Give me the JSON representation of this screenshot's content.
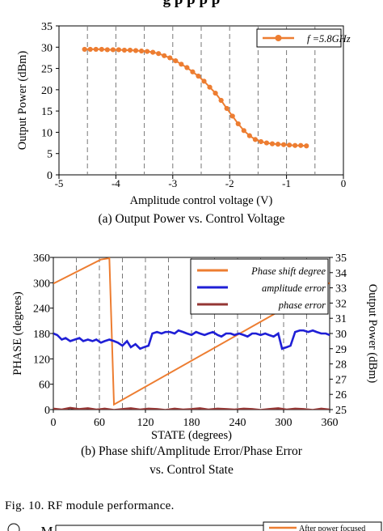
{
  "top_title_fragment": "g  p p  p p",
  "figure_caption": "Fig. 10.  RF module performance.",
  "chart_data": [
    {
      "type": "line",
      "caption": "(a) Output Power vs. Control Voltage",
      "xlabel": "Amplitude control voltage (V)",
      "ylabel": "Output Power (dBm)",
      "xlim": [
        -5,
        0
      ],
      "ylim": [
        0,
        35
      ],
      "xticks": [
        "-5",
        "-4",
        "-3",
        "-2",
        "-1",
        "0"
      ],
      "yticks": [
        "0",
        "5",
        "10",
        "15",
        "20",
        "25",
        "30",
        "35"
      ],
      "grid": "vertical dashed",
      "legend_position": "top-right",
      "series": [
        {
          "name": "f =5.8GHz",
          "color": "#ed7d31",
          "x": [
            -4.55,
            -4.45,
            -4.35,
            -4.25,
            -4.15,
            -4.05,
            -3.95,
            -3.85,
            -3.75,
            -3.65,
            -3.55,
            -3.45,
            -3.35,
            -3.25,
            -3.15,
            -3.05,
            -2.95,
            -2.85,
            -2.75,
            -2.65,
            -2.55,
            -2.45,
            -2.35,
            -2.25,
            -2.15,
            -2.05,
            -1.95,
            -1.85,
            -1.75,
            -1.65,
            -1.55,
            -1.45,
            -1.35,
            -1.25,
            -1.15,
            -1.05,
            -0.95,
            -0.85,
            -0.75,
            -0.65
          ],
          "y": [
            29.5,
            29.5,
            29.5,
            29.5,
            29.4,
            29.4,
            29.4,
            29.3,
            29.3,
            29.2,
            29.1,
            29.0,
            28.8,
            28.5,
            28.0,
            27.5,
            26.8,
            26.0,
            25.2,
            24.2,
            23.2,
            22.0,
            20.6,
            19.2,
            17.5,
            15.6,
            13.8,
            12.0,
            10.4,
            9.2,
            8.3,
            7.8,
            7.5,
            7.3,
            7.2,
            7.1,
            7.0,
            6.9,
            6.9,
            6.8
          ]
        }
      ]
    },
    {
      "type": "line",
      "caption_line1": "(b) Phase shift/Amplitude Error/Phase Error",
      "caption_line2": "vs. Control State",
      "xlabel": "STATE (degrees)",
      "ylabel": "PHASE (degrees)",
      "y2label": "Output Power (dBm)",
      "xlim": [
        0,
        360
      ],
      "ylim": [
        0,
        360
      ],
      "y2lim": [
        25,
        35
      ],
      "xticks": [
        "0",
        "60",
        "120",
        "180",
        "240",
        "300",
        "360"
      ],
      "yticks": [
        "0",
        "60",
        "120",
        "180",
        "240",
        "300",
        "360"
      ],
      "y2ticks": [
        "25",
        "26",
        "27",
        "28",
        "29",
        "30",
        "31",
        "32",
        "33",
        "34",
        "35"
      ],
      "grid": "vertical dashed",
      "legend_position": "top-right",
      "series": [
        {
          "name": "Phase shift degree",
          "color": "#ed7d31",
          "axis": "left",
          "x": [
            0,
            62,
            73,
            79,
            360
          ],
          "y": [
            298,
            355,
            358,
            12,
            300
          ]
        },
        {
          "name": "amplitude error",
          "color": "#1f1fd6",
          "axis": "right",
          "x": [
            0,
            5,
            11,
            16,
            22,
            28,
            34,
            39,
            45,
            51,
            56,
            62,
            67,
            73,
            79,
            84,
            90,
            96,
            101,
            107,
            113,
            118,
            124,
            129,
            135,
            141,
            146,
            152,
            158,
            163,
            169,
            174,
            180,
            186,
            191,
            197,
            202,
            208,
            214,
            219,
            225,
            231,
            236,
            242,
            248,
            253,
            259,
            264,
            270,
            276,
            281,
            287,
            293,
            298,
            304,
            309,
            315,
            321,
            326,
            332,
            338,
            343,
            349,
            355,
            360
          ],
          "y": [
            30.0,
            29.9,
            29.6,
            29.7,
            29.5,
            29.6,
            29.7,
            29.5,
            29.6,
            29.5,
            29.6,
            29.4,
            29.5,
            29.6,
            29.5,
            29.4,
            29.2,
            29.5,
            29.1,
            29.3,
            29.0,
            29.1,
            29.2,
            30.0,
            30.1,
            30.0,
            30.1,
            30.1,
            30.0,
            30.2,
            30.1,
            30.0,
            29.9,
            30.1,
            30.0,
            29.9,
            30.0,
            30.1,
            29.9,
            29.8,
            30.0,
            30.0,
            29.9,
            30.0,
            29.9,
            29.8,
            30.0,
            30.0,
            29.9,
            30.0,
            29.9,
            29.8,
            30.0,
            29.0,
            29.1,
            29.2,
            30.1,
            30.2,
            30.2,
            30.1,
            30.2,
            30.1,
            30.0,
            30.0,
            29.9
          ]
        },
        {
          "name": "phase error",
          "color": "#943634",
          "axis": "left",
          "x": [
            0,
            11,
            22,
            34,
            45,
            56,
            67,
            79,
            90,
            101,
            113,
            124,
            135,
            146,
            158,
            169,
            180,
            191,
            202,
            214,
            225,
            236,
            248,
            259,
            270,
            281,
            293,
            304,
            315,
            326,
            338,
            349,
            360
          ],
          "y": [
            2,
            0,
            4,
            1,
            3,
            0,
            2,
            -1,
            1,
            3,
            0,
            2,
            1,
            -1,
            2,
            0,
            1,
            3,
            0,
            2,
            1,
            0,
            2,
            1,
            -1,
            1,
            3,
            0,
            2,
            1,
            -1,
            2,
            0
          ]
        }
      ]
    },
    {
      "type": "line",
      "partial": true,
      "yticks": [
        "M"
      ],
      "series": [
        {
          "name": "After power focused",
          "color": "#ed7d31"
        }
      ]
    }
  ]
}
